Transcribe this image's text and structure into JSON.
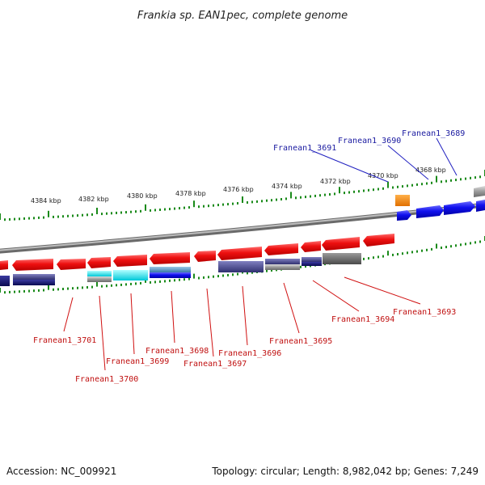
{
  "title": "Frankia sp. EAN1pec, complete genome",
  "footer": {
    "accession": "Accession: NC_009921",
    "summary": "Topology: circular; Length: 8,982,042 bp; Genes: 7,249"
  },
  "scale": {
    "unit": "kbp",
    "ticks": [
      "4384 kbp",
      "4382 kbp",
      "4380 kbp",
      "4378 kbp",
      "4376 kbp",
      "4374 kbp",
      "4372 kbp",
      "4370 kbp",
      "4368 kbp"
    ]
  },
  "colors": {
    "forward_strand": "#1a1aff",
    "reverse_strand": "#e8101a",
    "backbone": "#8a8a8a",
    "tick": "#1a8a1a",
    "forward_label": "#1a1aa0",
    "reverse_label": "#c01010"
  },
  "labels": {
    "top": [
      "Franean1_3691",
      "Franean1_3690",
      "Franean1_3689"
    ],
    "bottom": [
      "Franean1_3701",
      "Franean1_3700",
      "Franean1_3699",
      "Franean1_3698",
      "Franean1_3697",
      "Franean1_3696",
      "Franean1_3695",
      "Franean1_3694",
      "Franean1_3693"
    ]
  }
}
